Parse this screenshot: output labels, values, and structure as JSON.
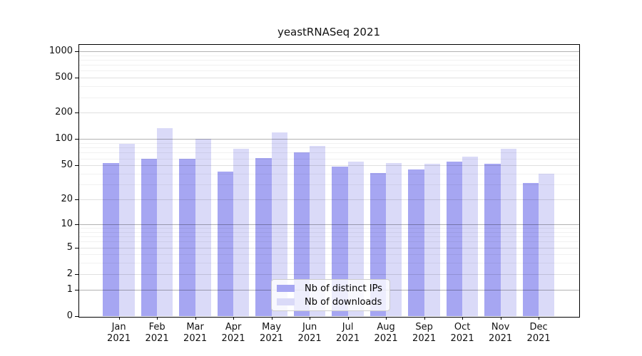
{
  "title": "yeastRNASeq 2021",
  "chart_data": {
    "type": "bar",
    "title": "yeastRNASeq 2021",
    "categories": [
      {
        "month": "Jan",
        "year": "2021"
      },
      {
        "month": "Feb",
        "year": "2021"
      },
      {
        "month": "Mar",
        "year": "2021"
      },
      {
        "month": "Apr",
        "year": "2021"
      },
      {
        "month": "May",
        "year": "2021"
      },
      {
        "month": "Jun",
        "year": "2021"
      },
      {
        "month": "Jul",
        "year": "2021"
      },
      {
        "month": "Aug",
        "year": "2021"
      },
      {
        "month": "Sep",
        "year": "2021"
      },
      {
        "month": "Oct",
        "year": "2021"
      },
      {
        "month": "Nov",
        "year": "2021"
      },
      {
        "month": "Dec",
        "year": "2021"
      }
    ],
    "series": [
      {
        "name": "Nb of distinct IPs",
        "color": "#a6a6f2",
        "values": [
          53,
          60,
          60,
          42,
          61,
          71,
          48,
          41,
          45,
          55,
          52,
          31
        ]
      },
      {
        "name": "Nb of downloads",
        "color": "#dadaf8",
        "values": [
          88,
          134,
          100,
          77,
          120,
          83,
          55,
          53,
          52,
          63,
          77,
          40
        ]
      }
    ],
    "yscale": "log1p",
    "yticks": [
      0,
      1,
      2,
      5,
      10,
      20,
      50,
      100,
      200,
      500,
      1000
    ],
    "ylim": [
      0,
      1200
    ],
    "xlabel": "",
    "ylabel": "",
    "grid": true,
    "legend_position": "bottom-center"
  }
}
